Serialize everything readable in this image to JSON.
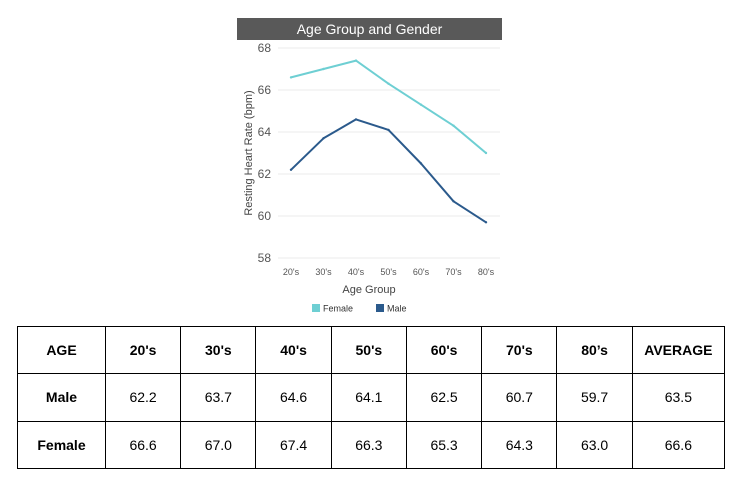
{
  "chart_data": {
    "type": "line",
    "title": "Age Group and Gender",
    "xlabel": "Age Group",
    "ylabel": "Resting Heart Rate (bpm)",
    "categories": [
      "20's",
      "30's",
      "40's",
      "50's",
      "60's",
      "70's",
      "80's"
    ],
    "ylim": [
      58,
      68
    ],
    "yticks": [
      58,
      60,
      62,
      64,
      66,
      68
    ],
    "grid": true,
    "legend_position": "bottom",
    "series": [
      {
        "name": "Female",
        "color": "#6ecfd3",
        "values": [
          66.6,
          67.0,
          67.4,
          66.3,
          65.3,
          64.3,
          63.0
        ]
      },
      {
        "name": "Male",
        "color": "#2b5a8c",
        "values": [
          62.2,
          63.7,
          64.6,
          64.1,
          62.5,
          60.7,
          59.7
        ]
      }
    ]
  },
  "table": {
    "header": [
      "AGE",
      "20's",
      "30's",
      "40's",
      "50's",
      "60's",
      "70's",
      "80’s",
      "AVERAGE"
    ],
    "rows": [
      {
        "label": "Male",
        "values": [
          "62.2",
          "63.7",
          "64.6",
          "64.1",
          "62.5",
          "60.7",
          "59.7",
          "63.5"
        ]
      },
      {
        "label": "Female",
        "values": [
          "66.6",
          "67.0",
          "67.4",
          "66.3",
          "65.3",
          "64.3",
          "63.0",
          "66.6"
        ]
      }
    ]
  }
}
